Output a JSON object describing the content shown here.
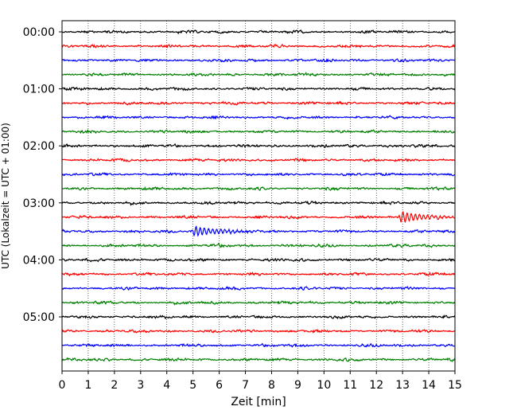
{
  "chart_data": {
    "type": "line",
    "title": "",
    "xlabel": "Zeit  [min]",
    "ylabel": "UTC (Lokalzeit = UTC + 01:00)",
    "xlim": [
      0,
      15
    ],
    "x_ticks": [
      "0",
      "1",
      "2",
      "3",
      "4",
      "5",
      "6",
      "7",
      "8",
      "9",
      "10",
      "11",
      "12",
      "13",
      "14",
      "15"
    ],
    "y_tick_labels": [
      {
        "label": "00:00",
        "trace_index": 0
      },
      {
        "label": "01:00",
        "trace_index": 4
      },
      {
        "label": "02:00",
        "trace_index": 8
      },
      {
        "label": "03:00",
        "trace_index": 12
      },
      {
        "label": "04:00",
        "trace_index": 16
      },
      {
        "label": "05:00",
        "trace_index": 20
      }
    ],
    "trace_interval_minutes": 15,
    "trace_count": 24,
    "color_cycle": [
      "#000000",
      "#ff0000",
      "#0000ff",
      "#007f00"
    ],
    "grid": "vertical dotted at every minute",
    "events": [
      {
        "trace_index": 13,
        "time_min": 12.9,
        "relative_amplitude": 1.6
      },
      {
        "trace_index": 14,
        "time_min": 5.0,
        "relative_amplitude": 1.4
      }
    ]
  }
}
